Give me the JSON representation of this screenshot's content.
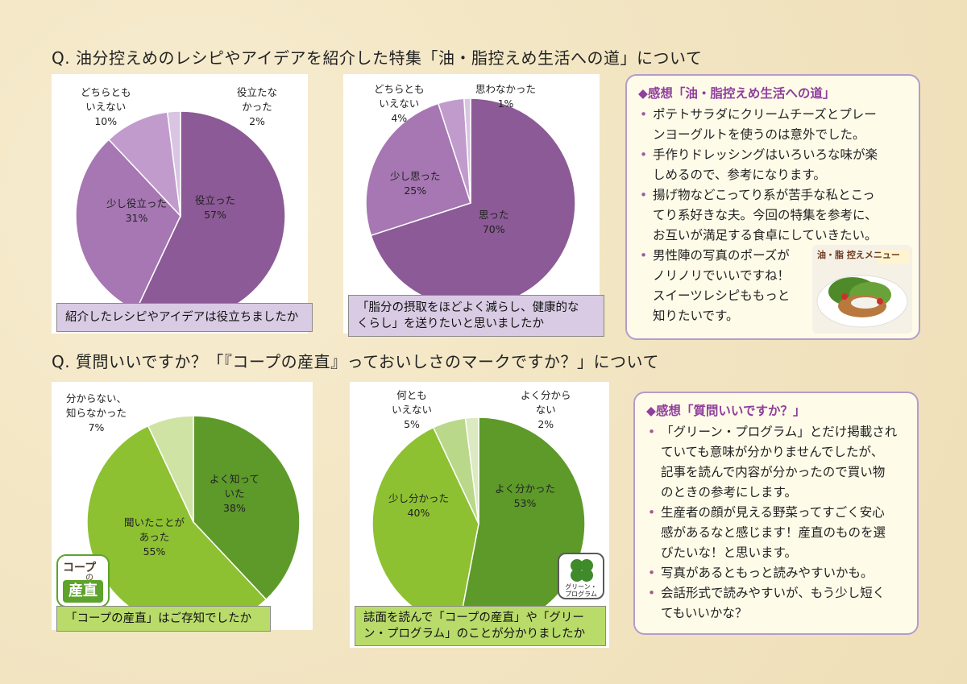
{
  "questions": {
    "q1": "Q.  油分控えめのレシピやアイデアを紹介した特集「油・脂控えめ生活への道」について",
    "q2": "Q.  質問いいですか？「『コープの産直』っておいしさのマークですか？」について"
  },
  "chart_data": [
    {
      "type": "pie",
      "caption": "紹介したレシピやアイデアは役立ちましたか",
      "slices": [
        {
          "label": "役立った",
          "value": 57,
          "color": "#8c5a96"
        },
        {
          "label": "少し役立った",
          "value": 31,
          "color": "#a677b2"
        },
        {
          "label": "どちらとも いえない",
          "value": 10,
          "color": "#c29bcd"
        },
        {
          "label": "役立たな かった",
          "value": 2,
          "color": "#d9c4e2"
        }
      ],
      "labels": [
        {
          "name": "役立った",
          "pct": "57%"
        },
        {
          "name": "少し役立った",
          "pct": "31%"
        },
        {
          "name1": "どちらとも",
          "name2": "いえない",
          "pct": "10%"
        },
        {
          "name1": "役立たな",
          "name2": "かった",
          "pct": "2%"
        }
      ]
    },
    {
      "type": "pie",
      "caption": "「脂分の摂取をほどよく減らし、健康的なくらし」を送りたいと思いましたか",
      "slices": [
        {
          "label": "思った",
          "value": 70,
          "color": "#8c5a96"
        },
        {
          "label": "少し思った",
          "value": 25,
          "color": "#a677b2"
        },
        {
          "label": "どちらとも いえない",
          "value": 4,
          "color": "#c29bcd"
        },
        {
          "label": "思わなかった",
          "value": 1,
          "color": "#d9c4e2"
        }
      ],
      "labels": [
        {
          "name": "思った",
          "pct": "70%"
        },
        {
          "name": "少し思った",
          "pct": "25%"
        },
        {
          "name1": "どちらとも",
          "name2": "いえない",
          "pct": "4%"
        },
        {
          "name": "思わなかった",
          "pct": "1%"
        }
      ]
    },
    {
      "type": "pie",
      "caption": "「コープの産直」はご存知でしたか",
      "slices": [
        {
          "label": "よく知って いた",
          "value": 38,
          "color": "#5d9a2a"
        },
        {
          "label": "聞いたことが あった",
          "value": 55,
          "color": "#8dc132"
        },
        {
          "label": "分からない、知らなかった",
          "value": 7,
          "color": "#cfe3a5"
        }
      ],
      "labels": [
        {
          "name1": "よく知って",
          "name2": "いた",
          "pct": "38%"
        },
        {
          "name1": "聞いたことが",
          "name2": "あった",
          "pct": "55%"
        },
        {
          "name1": "分からない、",
          "name2": "知らなかった",
          "pct": "7%"
        }
      ]
    },
    {
      "type": "pie",
      "caption": "誌面を読んで「コープの産直」や「グリーン・プログラム」のことが分かりましたか",
      "slices": [
        {
          "label": "よく分かった",
          "value": 53,
          "color": "#5d9a2a"
        },
        {
          "label": "少し分かった",
          "value": 40,
          "color": "#8dc132"
        },
        {
          "label": "何とも いえない",
          "value": 5,
          "color": "#b9d889"
        },
        {
          "label": "よく分から ない",
          "value": 2,
          "color": "#dbeac0"
        }
      ],
      "labels": [
        {
          "name": "よく分かった",
          "pct": "53%"
        },
        {
          "name": "少し分かった",
          "pct": "40%"
        },
        {
          "name1": "何とも",
          "name2": "いえない",
          "pct": "5%"
        },
        {
          "name1": "よく分から",
          "name2": "ない",
          "pct": "2%"
        }
      ]
    }
  ],
  "captions": {
    "c1": "紹介したレシピやアイデアは役立ちましたか",
    "c2a": "「脂分の摂取をほどよく減らし、健康的な",
    "c2b": "くらし」を送りたいと思いましたか",
    "c3": "「コープの産直」はご存知でしたか",
    "c4a": "誌面を読んで「コープの産直」や「グリー",
    "c4b": "ン・プログラム」のことが分かりましたか"
  },
  "comments1": {
    "title": "◆感想「油・脂控えめ生活への道」",
    "items": [
      [
        "ポテトサラダにクリームチーズとプレー",
        "ンヨーグルトを使うのは意外でした。"
      ],
      [
        "手作りドレッシングはいろいろな味が楽",
        "しめるので、参考になります。"
      ],
      [
        "揚げ物などこってり系が苦手な私とこっ",
        "てり系好きな夫。今回の特集を参考に、",
        "お互いが満足する食卓にしていきたい。"
      ],
      [
        "男性陣の写真のポーズが",
        "ノリノリでいいですね！",
        "スイーツレシピももっと",
        "知りたいです。"
      ]
    ]
  },
  "comments2": {
    "title": "◆感想「質問いいですか？」",
    "items": [
      [
        "「グリーン・プログラム」とだけ掲載され",
        "ていても意味が分かりませんでしたが、",
        "記事を読んで内容が分かったので買い物",
        "のときの参考にします。"
      ],
      [
        "生産者の顔が見える野菜ってすごく安心",
        "感があるなと感じます！産直のものを選",
        "びたいな！と思います。"
      ],
      [
        "写真があるともっと読みやすいかも。"
      ],
      [
        "会話形式で読みやすいが、もう少し短く",
        "てもいいかな？"
      ]
    ]
  },
  "photo": {
    "title": "油・脂 控えメニュー"
  },
  "logos": {
    "coop_line1": "コープ",
    "coop_small": "の",
    "coop_line2": "産直",
    "green_line1": "グリーン・",
    "green_line2": "プログラム"
  }
}
